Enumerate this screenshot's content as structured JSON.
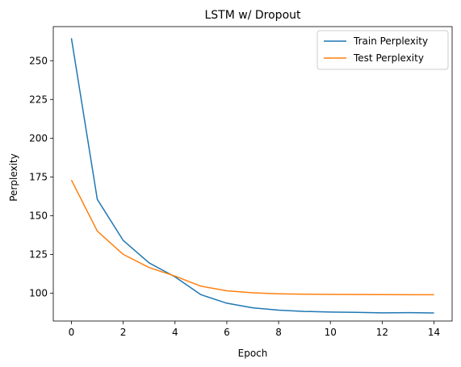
{
  "chart_data": {
    "type": "line",
    "title": "LSTM w/ Dropout",
    "xlabel": "Epoch",
    "ylabel": "Perplexity",
    "x": [
      0,
      1,
      2,
      3,
      4,
      5,
      6,
      7,
      8,
      9,
      10,
      11,
      12,
      13,
      14
    ],
    "xlim": [
      -0.7,
      14.7
    ],
    "ylim": [
      82,
      272
    ],
    "xticks": [
      0,
      2,
      4,
      6,
      8,
      10,
      12,
      14
    ],
    "yticks": [
      100,
      125,
      150,
      175,
      200,
      225,
      250
    ],
    "grid": false,
    "legend_position": "top-right",
    "series": [
      {
        "name": "Train Perplexity",
        "color": "#1f77b4",
        "values": [
          264.5,
          160.5,
          134,
          119.5,
          110.5,
          99,
          93.5,
          90.5,
          89,
          88.2,
          87.8,
          87.6,
          87.3,
          87.4,
          87.2
        ]
      },
      {
        "name": "Test Perplexity",
        "color": "#ff7f0e",
        "values": [
          173,
          140,
          125,
          116.5,
          111,
          104.5,
          101.5,
          100.2,
          99.6,
          99.3,
          99.2,
          99.1,
          99.05,
          99.0,
          99.0
        ]
      }
    ]
  }
}
